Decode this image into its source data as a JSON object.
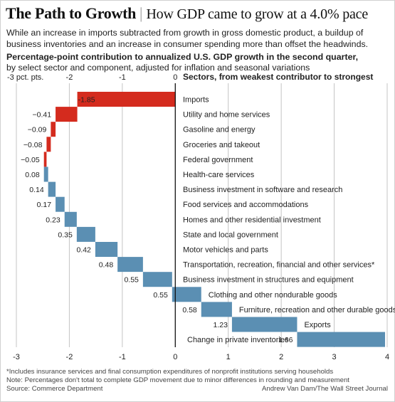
{
  "header": {
    "title": "The Path to Growth",
    "separator": "|",
    "subtitle": "How GDP came to grow at a 4.0% pace"
  },
  "intro": "While an increase in imports subtracted from growth in gross domestic product, a buildup of business inventories and an increase in consumer spending more than offset the headwinds.",
  "lede_bold": "Percentage-point contribution to annualized U.S. GDP growth in the second quarter,",
  "lede_rest": "by select sector and component, adjusted for inflation and seasonal variations",
  "chart_data": {
    "type": "bar",
    "subtype": "waterfall",
    "sector_header": "Sectors, from weakest contributor to strongest",
    "top_tick_labels": [
      "-3 pct. pts.",
      "-2",
      "-1",
      "0"
    ],
    "bottom_tick_labels": [
      "-3",
      "-2",
      "-1",
      "0",
      "1",
      "2",
      "3",
      "4"
    ],
    "ticks": [
      -3,
      -2,
      -1,
      0,
      1,
      2,
      3,
      4
    ],
    "xlim": [
      -3,
      4
    ],
    "grid": true,
    "colors": {
      "negative": "#d42b1e",
      "positive": "#5b8fb3"
    },
    "categories": [
      "Imports",
      "Utility and home services",
      "Gasoline and energy",
      "Groceries and takeout",
      "Federal government",
      "Health-care services",
      "Business investment in software and research",
      "Food services and accommodations",
      "Homes and other residential investment",
      "State and local government",
      "Motor vehicles and parts",
      "Transportation, recreation, financial and other services*",
      "Business investment in structures and equipment",
      "Clothing and other nondurable goods",
      "Furniture, recreation and other durable goods",
      "Exports",
      "Change in private inventories"
    ],
    "values": [
      -1.85,
      -0.41,
      -0.09,
      -0.08,
      -0.05,
      0.08,
      0.14,
      0.17,
      0.23,
      0.35,
      0.42,
      0.48,
      0.55,
      0.55,
      0.58,
      1.23,
      1.66
    ],
    "value_labels": [
      "-1.85",
      "−0.41",
      "−0.09",
      "−0.08",
      "−0.05",
      "0.08",
      "0.14",
      "0.17",
      "0.23",
      "0.35",
      "0.42",
      "0.48",
      "0.55",
      "0.55",
      "0.58",
      "1.23",
      "1.66"
    ]
  },
  "footnote": "*Includes insurance services and final consumption expenditures of nonprofit institutions serving households",
  "note": "Note: Percentages don't total to complete GDP movement due to minor differences in rounding and measurement",
  "source": "Source: Commerce Department",
  "credit": "Andrew Van Dam/The Wall Street Journal"
}
